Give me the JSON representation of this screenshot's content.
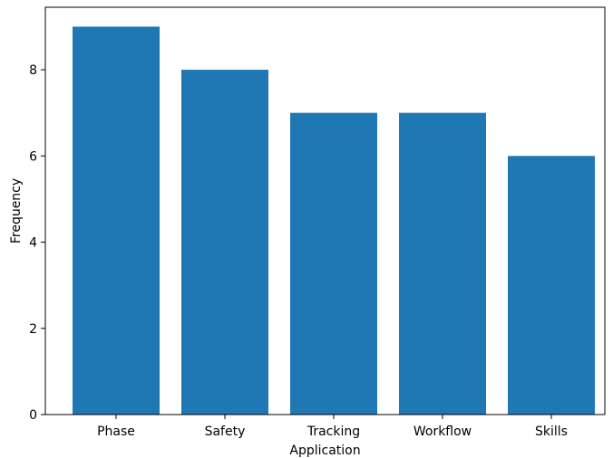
{
  "chart_data": {
    "type": "bar",
    "title": "",
    "xlabel": "Application",
    "ylabel": "Frequency",
    "categories": [
      "Phase",
      "Safety",
      "Tracking",
      "Workflow",
      "Skills"
    ],
    "values": [
      9,
      8,
      7,
      7,
      6
    ],
    "ylim": [
      0,
      9.45
    ],
    "yticks": [
      "0",
      "2",
      "4",
      "6",
      "8"
    ],
    "grid": false,
    "legend": "none",
    "bar_color": "#1f77b4"
  }
}
